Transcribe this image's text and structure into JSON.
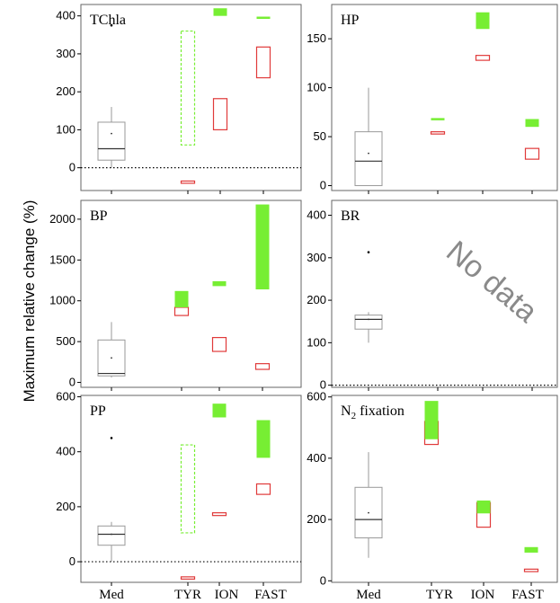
{
  "ylabel": "Maximum relative change (%)",
  "categories": [
    "Med",
    "TYR",
    "ION",
    "FAST"
  ],
  "no_data_text": "No data",
  "colors": {
    "observed": "#e03a3a",
    "model": "#77ee33",
    "med_box": "#999999",
    "frame": "#666666"
  },
  "chart_data": [
    {
      "type": "box",
      "title": "TChla",
      "title_sub": "",
      "yticks": [
        0,
        100,
        200,
        300,
        400
      ],
      "ylim": [
        -60,
        430
      ],
      "med": {
        "q1": 20,
        "median": 50,
        "q3": 120,
        "whisker_low": 0,
        "whisker_high": 160,
        "mean": 90,
        "outliers": [
          375
        ]
      },
      "ranges": [
        {
          "category": "TYR",
          "kind": "observed",
          "low": -40,
          "high": -35
        },
        {
          "category": "TYR",
          "kind": "model-dashed",
          "low": 60,
          "high": 360
        },
        {
          "category": "ION",
          "kind": "observed",
          "low": 100,
          "high": 182
        },
        {
          "category": "ION",
          "kind": "model",
          "low": 400,
          "high": 420
        },
        {
          "category": "FAST",
          "kind": "observed",
          "low": 237,
          "high": 318
        },
        {
          "category": "FAST",
          "kind": "model",
          "low": 394,
          "high": 398
        }
      ],
      "zero_line": true
    },
    {
      "type": "box",
      "title": "HP",
      "title_sub": "",
      "yticks": [
        0,
        50,
        100,
        150
      ],
      "ylim": [
        -5,
        185
      ],
      "med": {
        "q1": 0,
        "median": 25,
        "q3": 55,
        "whisker_low": 0,
        "whisker_high": 100,
        "mean": 33,
        "outliers": []
      },
      "ranges": [
        {
          "category": "TYR",
          "kind": "observed",
          "low": 53,
          "high": 55
        },
        {
          "category": "TYR",
          "kind": "model",
          "low": 67,
          "high": 69
        },
        {
          "category": "ION",
          "kind": "observed",
          "low": 128,
          "high": 133
        },
        {
          "category": "ION",
          "kind": "model",
          "low": 160,
          "high": 177
        },
        {
          "category": "FAST",
          "kind": "observed",
          "low": 27,
          "high": 38
        },
        {
          "category": "FAST",
          "kind": "model",
          "low": 60,
          "high": 68
        }
      ],
      "zero_line": false
    },
    {
      "type": "box",
      "title": "BP",
      "title_sub": "",
      "yticks": [
        0,
        500,
        1000,
        1500,
        2000
      ],
      "ylim": [
        -60,
        2230
      ],
      "med": {
        "q1": 80,
        "median": 110,
        "q3": 520,
        "whisker_low": 60,
        "whisker_high": 740,
        "mean": 300,
        "outliers": []
      },
      "ranges": [
        {
          "category": "TYR",
          "kind": "observed",
          "low": 820,
          "high": 920
        },
        {
          "category": "TYR",
          "kind": "model",
          "low": 920,
          "high": 1120
        },
        {
          "category": "ION",
          "kind": "observed",
          "low": 380,
          "high": 550
        },
        {
          "category": "ION",
          "kind": "model",
          "low": 1180,
          "high": 1240
        },
        {
          "category": "FAST",
          "kind": "observed",
          "low": 160,
          "high": 230
        },
        {
          "category": "FAST",
          "kind": "model",
          "low": 1140,
          "high": 2180
        }
      ],
      "zero_line": false
    },
    {
      "type": "box",
      "title": "BR",
      "title_sub": "",
      "yticks": [
        0,
        100,
        200,
        300,
        400
      ],
      "ylim": [
        -5,
        435
      ],
      "med": {
        "q1": 132,
        "median": 155,
        "q3": 165,
        "whisker_low": 100,
        "whisker_high": 172,
        "mean": 155,
        "outliers": [
          313
        ]
      },
      "ranges": [],
      "zero_line": true,
      "no_data": true
    },
    {
      "type": "box",
      "title": "PP",
      "title_sub": "",
      "yticks": [
        0,
        200,
        400,
        600
      ],
      "ylim": [
        -75,
        605
      ],
      "med": {
        "q1": 60,
        "median": 100,
        "q3": 130,
        "whisker_low": 0,
        "whisker_high": 145,
        "mean": 100,
        "outliers": [
          450
        ]
      },
      "ranges": [
        {
          "category": "TYR",
          "kind": "observed",
          "low": -62,
          "high": -55
        },
        {
          "category": "TYR",
          "kind": "model-dashed",
          "low": 105,
          "high": 425
        },
        {
          "category": "ION",
          "kind": "observed",
          "low": 168,
          "high": 178
        },
        {
          "category": "ION",
          "kind": "model",
          "low": 525,
          "high": 575
        },
        {
          "category": "FAST",
          "kind": "observed",
          "low": 245,
          "high": 283
        },
        {
          "category": "FAST",
          "kind": "model",
          "low": 378,
          "high": 515
        }
      ],
      "zero_line": true
    },
    {
      "type": "box",
      "title": "N",
      "title_sub": "2",
      "title_suffix": " fixation",
      "yticks": [
        0,
        200,
        400,
        600
      ],
      "ylim": [
        -5,
        605
      ],
      "med": {
        "q1": 140,
        "median": 200,
        "q3": 305,
        "whisker_low": 75,
        "whisker_high": 420,
        "mean": 222,
        "outliers": []
      },
      "ranges": [
        {
          "category": "TYR",
          "kind": "observed",
          "low": 445,
          "high": 520
        },
        {
          "category": "TYR",
          "kind": "model",
          "low": 462,
          "high": 587
        },
        {
          "category": "ION",
          "kind": "observed",
          "low": 175,
          "high": 255
        },
        {
          "category": "ION",
          "kind": "model",
          "low": 220,
          "high": 262
        },
        {
          "category": "FAST",
          "kind": "observed",
          "low": 30,
          "high": 38
        },
        {
          "category": "FAST",
          "kind": "model",
          "low": 92,
          "high": 110
        }
      ],
      "zero_line": false
    }
  ]
}
